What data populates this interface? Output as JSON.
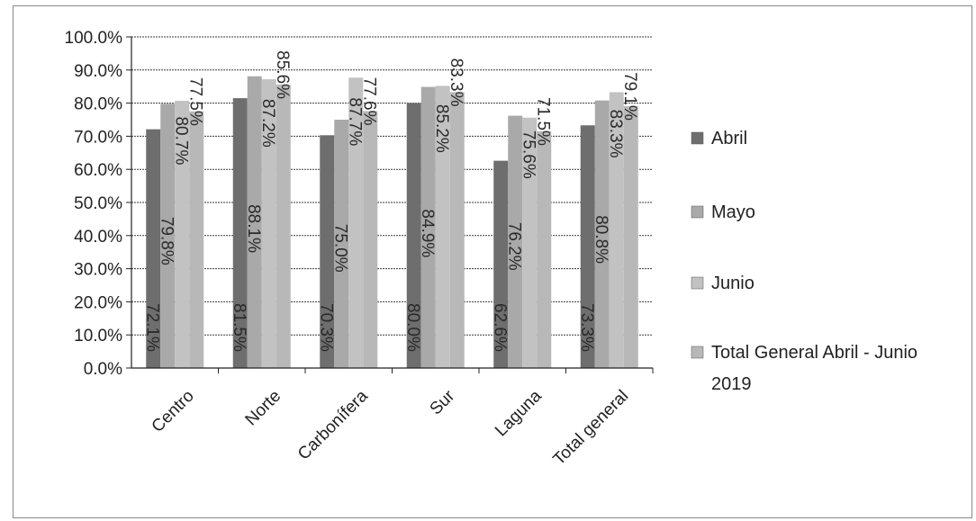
{
  "chart_data": {
    "type": "bar",
    "categories": [
      "Centro",
      "Norte",
      "Carbonífera",
      "Sur",
      "Laguna",
      "Total general"
    ],
    "series": [
      {
        "name": "Abril",
        "values": [
          72.1,
          81.5,
          70.3,
          80.0,
          62.6,
          73.3
        ],
        "labels": [
          "72.1%",
          "81.5%",
          "70.3%",
          "80.0%",
          "62.6%",
          "73.3%"
        ],
        "color": "#6e6e6e"
      },
      {
        "name": "Mayo",
        "values": [
          79.8,
          88.1,
          75.0,
          84.9,
          76.2,
          80.8
        ],
        "labels": [
          "79.8%",
          "88.1%",
          "75.0%",
          "84.9%",
          "76.2%",
          "80.8%"
        ],
        "color": "#a9a9a9"
      },
      {
        "name": "Junio",
        "values": [
          80.7,
          87.2,
          87.7,
          85.2,
          75.6,
          83.3
        ],
        "labels": [
          "80.7%",
          "87.2%",
          "87.7%",
          "85.2%",
          "75.6%",
          "83.3%"
        ],
        "color": "#c2c2c2"
      },
      {
        "name": "Total General Abril - Junio 2019",
        "name_lines": [
          "Total General Abril - Junio",
          "2019"
        ],
        "values": [
          77.5,
          85.6,
          77.6,
          83.3,
          71.5,
          79.1
        ],
        "labels": [
          "77.5%",
          "85.6%",
          "77.6%",
          "83.3%",
          "71.5%",
          "79.1%"
        ],
        "color": "#b8b8b8"
      }
    ],
    "y_ticks": [
      "0.0%",
      "10.0%",
      "20.0%",
      "30.0%",
      "40.0%",
      "50.0%",
      "60.0%",
      "70.0%",
      "80.0%",
      "90.0%",
      "100.0%"
    ],
    "ylim": [
      0,
      100
    ],
    "grid": true,
    "legend_position": "right",
    "title": "",
    "xlabel": "",
    "ylabel": ""
  }
}
